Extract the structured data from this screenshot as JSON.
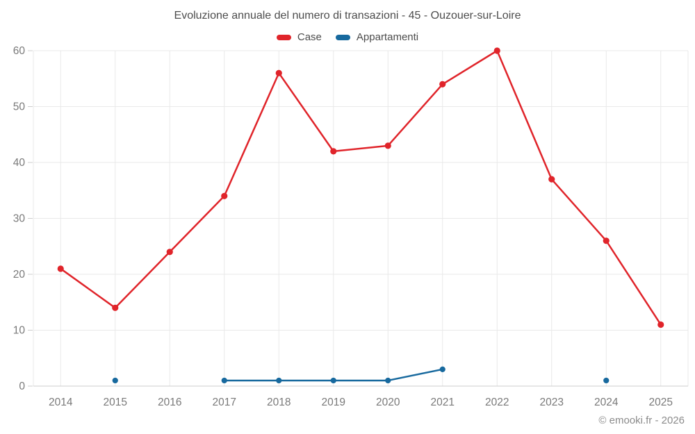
{
  "chart_data": {
    "type": "line",
    "title": "Evoluzione annuale del numero di transazioni - 45 - Ouzouer-sur-Loire",
    "categories": [
      "2014",
      "2015",
      "2016",
      "2017",
      "2018",
      "2019",
      "2020",
      "2021",
      "2022",
      "2023",
      "2024",
      "2025"
    ],
    "series": [
      {
        "name": "Case",
        "color": "#e0242a",
        "values": [
          21,
          14,
          24,
          34,
          56,
          42,
          43,
          54,
          60,
          37,
          26,
          11
        ]
      },
      {
        "name": "Appartamenti",
        "color": "#17699e",
        "values": [
          null,
          1,
          null,
          1,
          1,
          1,
          1,
          3,
          null,
          null,
          1,
          null
        ]
      }
    ],
    "ylim": [
      0,
      60
    ],
    "yticks": [
      0,
      10,
      20,
      30,
      40,
      50,
      60
    ],
    "grid": true,
    "legend_position": "top",
    "colors": {
      "gridline": "#e9e9e9",
      "axis_line": "#cccccc",
      "tick_label": "#797979",
      "title_text": "#4c4c4c"
    }
  },
  "footer": {
    "credit": "© emooki.fr - 2026"
  }
}
